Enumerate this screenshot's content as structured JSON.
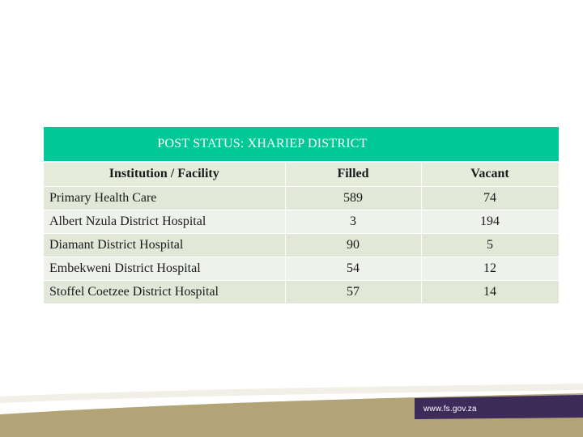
{
  "table": {
    "title": "POST STATUS: XHARIEP DISTRICT",
    "headers": [
      "Institution / Facility",
      "Filled",
      "Vacant"
    ],
    "rows": [
      {
        "name": "Primary Health Care",
        "filled": "589",
        "vacant": "74"
      },
      {
        "name": "Albert Nzula District Hospital",
        "filled": "3",
        "vacant": "194"
      },
      {
        "name": "Diamant District Hospital",
        "filled": "90",
        "vacant": "5"
      },
      {
        "name": "Embekweni District Hospital",
        "filled": "54",
        "vacant": "12"
      },
      {
        "name": "Stoffel Coetzee District Hospital",
        "filled": "57",
        "vacant": "14"
      }
    ]
  },
  "footer": {
    "url": "www.fs.gov.za"
  },
  "colors": {
    "title_bar": "#00c896",
    "row_odd": "#e2e8d8",
    "row_even": "#eff2ea",
    "footer_gold": "#b3a477",
    "footer_purple": "#3d2b5a"
  }
}
